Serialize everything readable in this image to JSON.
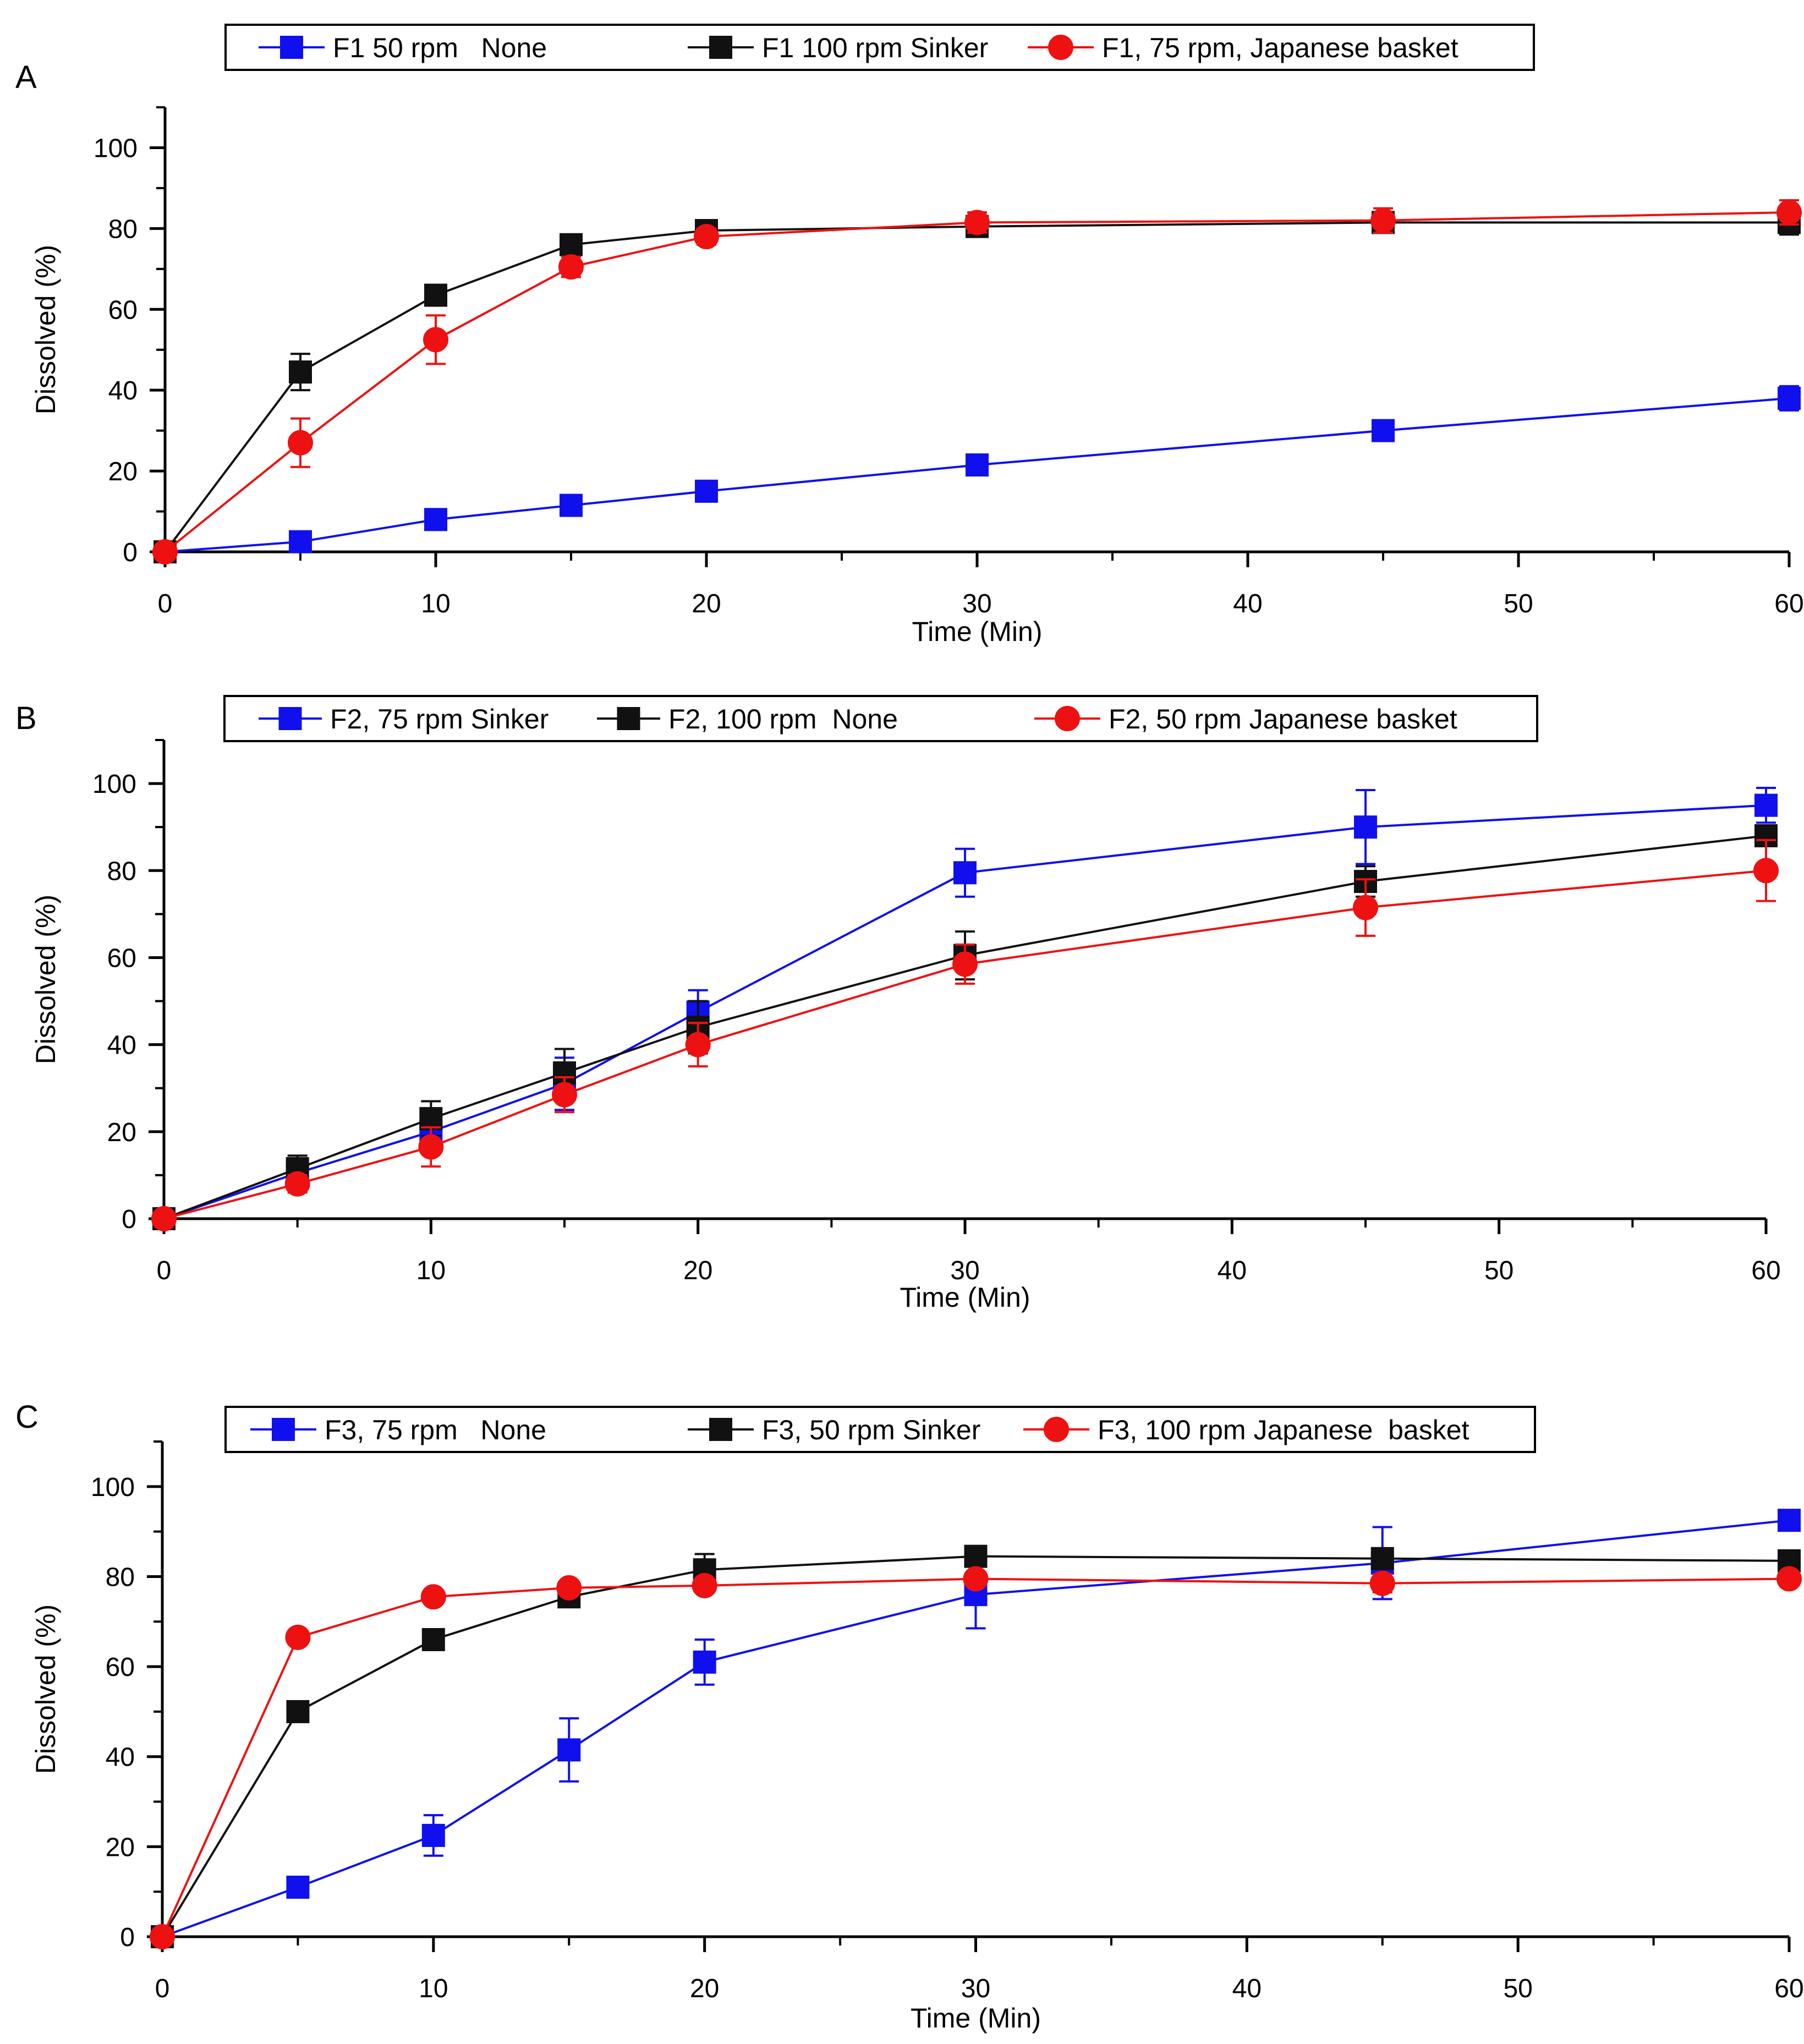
{
  "colors": {
    "blue": "#1010ee",
    "black": "#111111",
    "red": "#ee1111"
  },
  "chart_data": [
    {
      "panel_label": "A",
      "type": "line",
      "xlabel": "Time (Min)",
      "ylabel": "Dissolved (%)",
      "xlim": [
        0,
        60
      ],
      "ylim": [
        0,
        110
      ],
      "xticks": [
        0,
        10,
        20,
        30,
        40,
        50,
        60
      ],
      "yticks": [
        0,
        20,
        40,
        60,
        80,
        100
      ],
      "legend_position": "top",
      "series": [
        {
          "name": "F1 50 rpm   None",
          "color": "blue",
          "marker": "square",
          "x": [
            0,
            5,
            10,
            15,
            20,
            30,
            45,
            60
          ],
          "y": [
            0,
            2.5,
            8,
            11.5,
            15,
            21.5,
            30,
            38
          ],
          "err": [
            0,
            1,
            1,
            1,
            1,
            1.5,
            1.5,
            3
          ]
        },
        {
          "name": "F1 100 rpm Sinker",
          "color": "black",
          "marker": "square",
          "x": [
            0,
            5,
            10,
            15,
            20,
            30,
            45,
            60
          ],
          "y": [
            0,
            44.5,
            63.5,
            76,
            79.5,
            80.5,
            81.5,
            81.5
          ],
          "err": [
            0,
            4.5,
            2,
            2,
            1.5,
            2.5,
            2.5,
            3
          ]
        },
        {
          "name": "F1, 75 rpm, Japanese basket",
          "color": "red",
          "marker": "circle",
          "x": [
            0,
            5,
            10,
            15,
            20,
            30,
            45,
            60
          ],
          "y": [
            0,
            27,
            52.5,
            70.5,
            78,
            81.5,
            82,
            84
          ],
          "err": [
            0,
            6,
            6,
            2.5,
            2,
            2.5,
            3,
            3
          ]
        }
      ]
    },
    {
      "panel_label": "B",
      "type": "line",
      "xlabel": "Time (Min)",
      "ylabel": "Dissolved (%)",
      "xlim": [
        0,
        60
      ],
      "ylim": [
        0,
        110
      ],
      "xticks": [
        0,
        10,
        20,
        30,
        40,
        50,
        60
      ],
      "yticks": [
        0,
        20,
        40,
        60,
        80,
        100
      ],
      "legend_position": "top",
      "series": [
        {
          "name": "F2, 75 rpm Sinker",
          "color": "blue",
          "marker": "square",
          "x": [
            0,
            5,
            10,
            15,
            20,
            30,
            45,
            60
          ],
          "y": [
            0,
            10.5,
            20,
            31,
            47.5,
            79.5,
            90,
            95
          ],
          "err": [
            0,
            2,
            3,
            6,
            5,
            5.5,
            8.5,
            4
          ]
        },
        {
          "name": "F2, 100 rpm  None",
          "color": "black",
          "marker": "square",
          "x": [
            0,
            5,
            10,
            15,
            20,
            30,
            45,
            60
          ],
          "y": [
            0,
            11.5,
            23,
            33.5,
            44,
            60.5,
            77.5,
            88
          ],
          "err": [
            0,
            3,
            4,
            5.5,
            6,
            5.5,
            3.5,
            2
          ]
        },
        {
          "name": "F2, 50 rpm Japanese basket",
          "color": "red",
          "marker": "circle",
          "x": [
            0,
            5,
            10,
            15,
            20,
            30,
            45,
            60
          ],
          "y": [
            0,
            8,
            16.5,
            28.5,
            40,
            58.5,
            71.5,
            80
          ],
          "err": [
            0,
            2,
            4.5,
            4,
            5,
            4.5,
            6.5,
            7
          ]
        }
      ]
    },
    {
      "panel_label": "C",
      "type": "line",
      "xlabel": "Time (Min)",
      "ylabel": "Dissolved (%)",
      "xlim": [
        0,
        60
      ],
      "ylim": [
        0,
        110
      ],
      "xticks": [
        0,
        10,
        20,
        30,
        40,
        50,
        60
      ],
      "yticks": [
        0,
        20,
        40,
        60,
        80,
        100
      ],
      "legend_position": "top",
      "series": [
        {
          "name": "F3, 75 rpm   None",
          "color": "blue",
          "marker": "square",
          "x": [
            0,
            5,
            10,
            15,
            20,
            30,
            45,
            60
          ],
          "y": [
            0,
            11,
            22.5,
            41.5,
            61,
            76,
            83,
            92.5
          ],
          "err": [
            0,
            1.5,
            4.5,
            7,
            5,
            7.5,
            8,
            1.5
          ]
        },
        {
          "name": "F3, 50 rpm Sinker",
          "color": "black",
          "marker": "square",
          "x": [
            0,
            5,
            10,
            15,
            20,
            30,
            45,
            60
          ],
          "y": [
            0,
            50,
            66,
            75.5,
            81.5,
            84.5,
            84,
            83.5
          ],
          "err": [
            0,
            1.5,
            1.5,
            1.5,
            3.5,
            1.5,
            2,
            1
          ]
        },
        {
          "name": "F3, 100 rpm Japanese  basket",
          "color": "red",
          "marker": "circle",
          "x": [
            0,
            5,
            10,
            15,
            20,
            30,
            45,
            60
          ],
          "y": [
            0,
            66.5,
            75.5,
            77.5,
            78,
            79.5,
            78.5,
            79.5
          ],
          "err": [
            0,
            1.5,
            1.5,
            1.5,
            1.5,
            1.5,
            2,
            1
          ]
        }
      ]
    }
  ]
}
